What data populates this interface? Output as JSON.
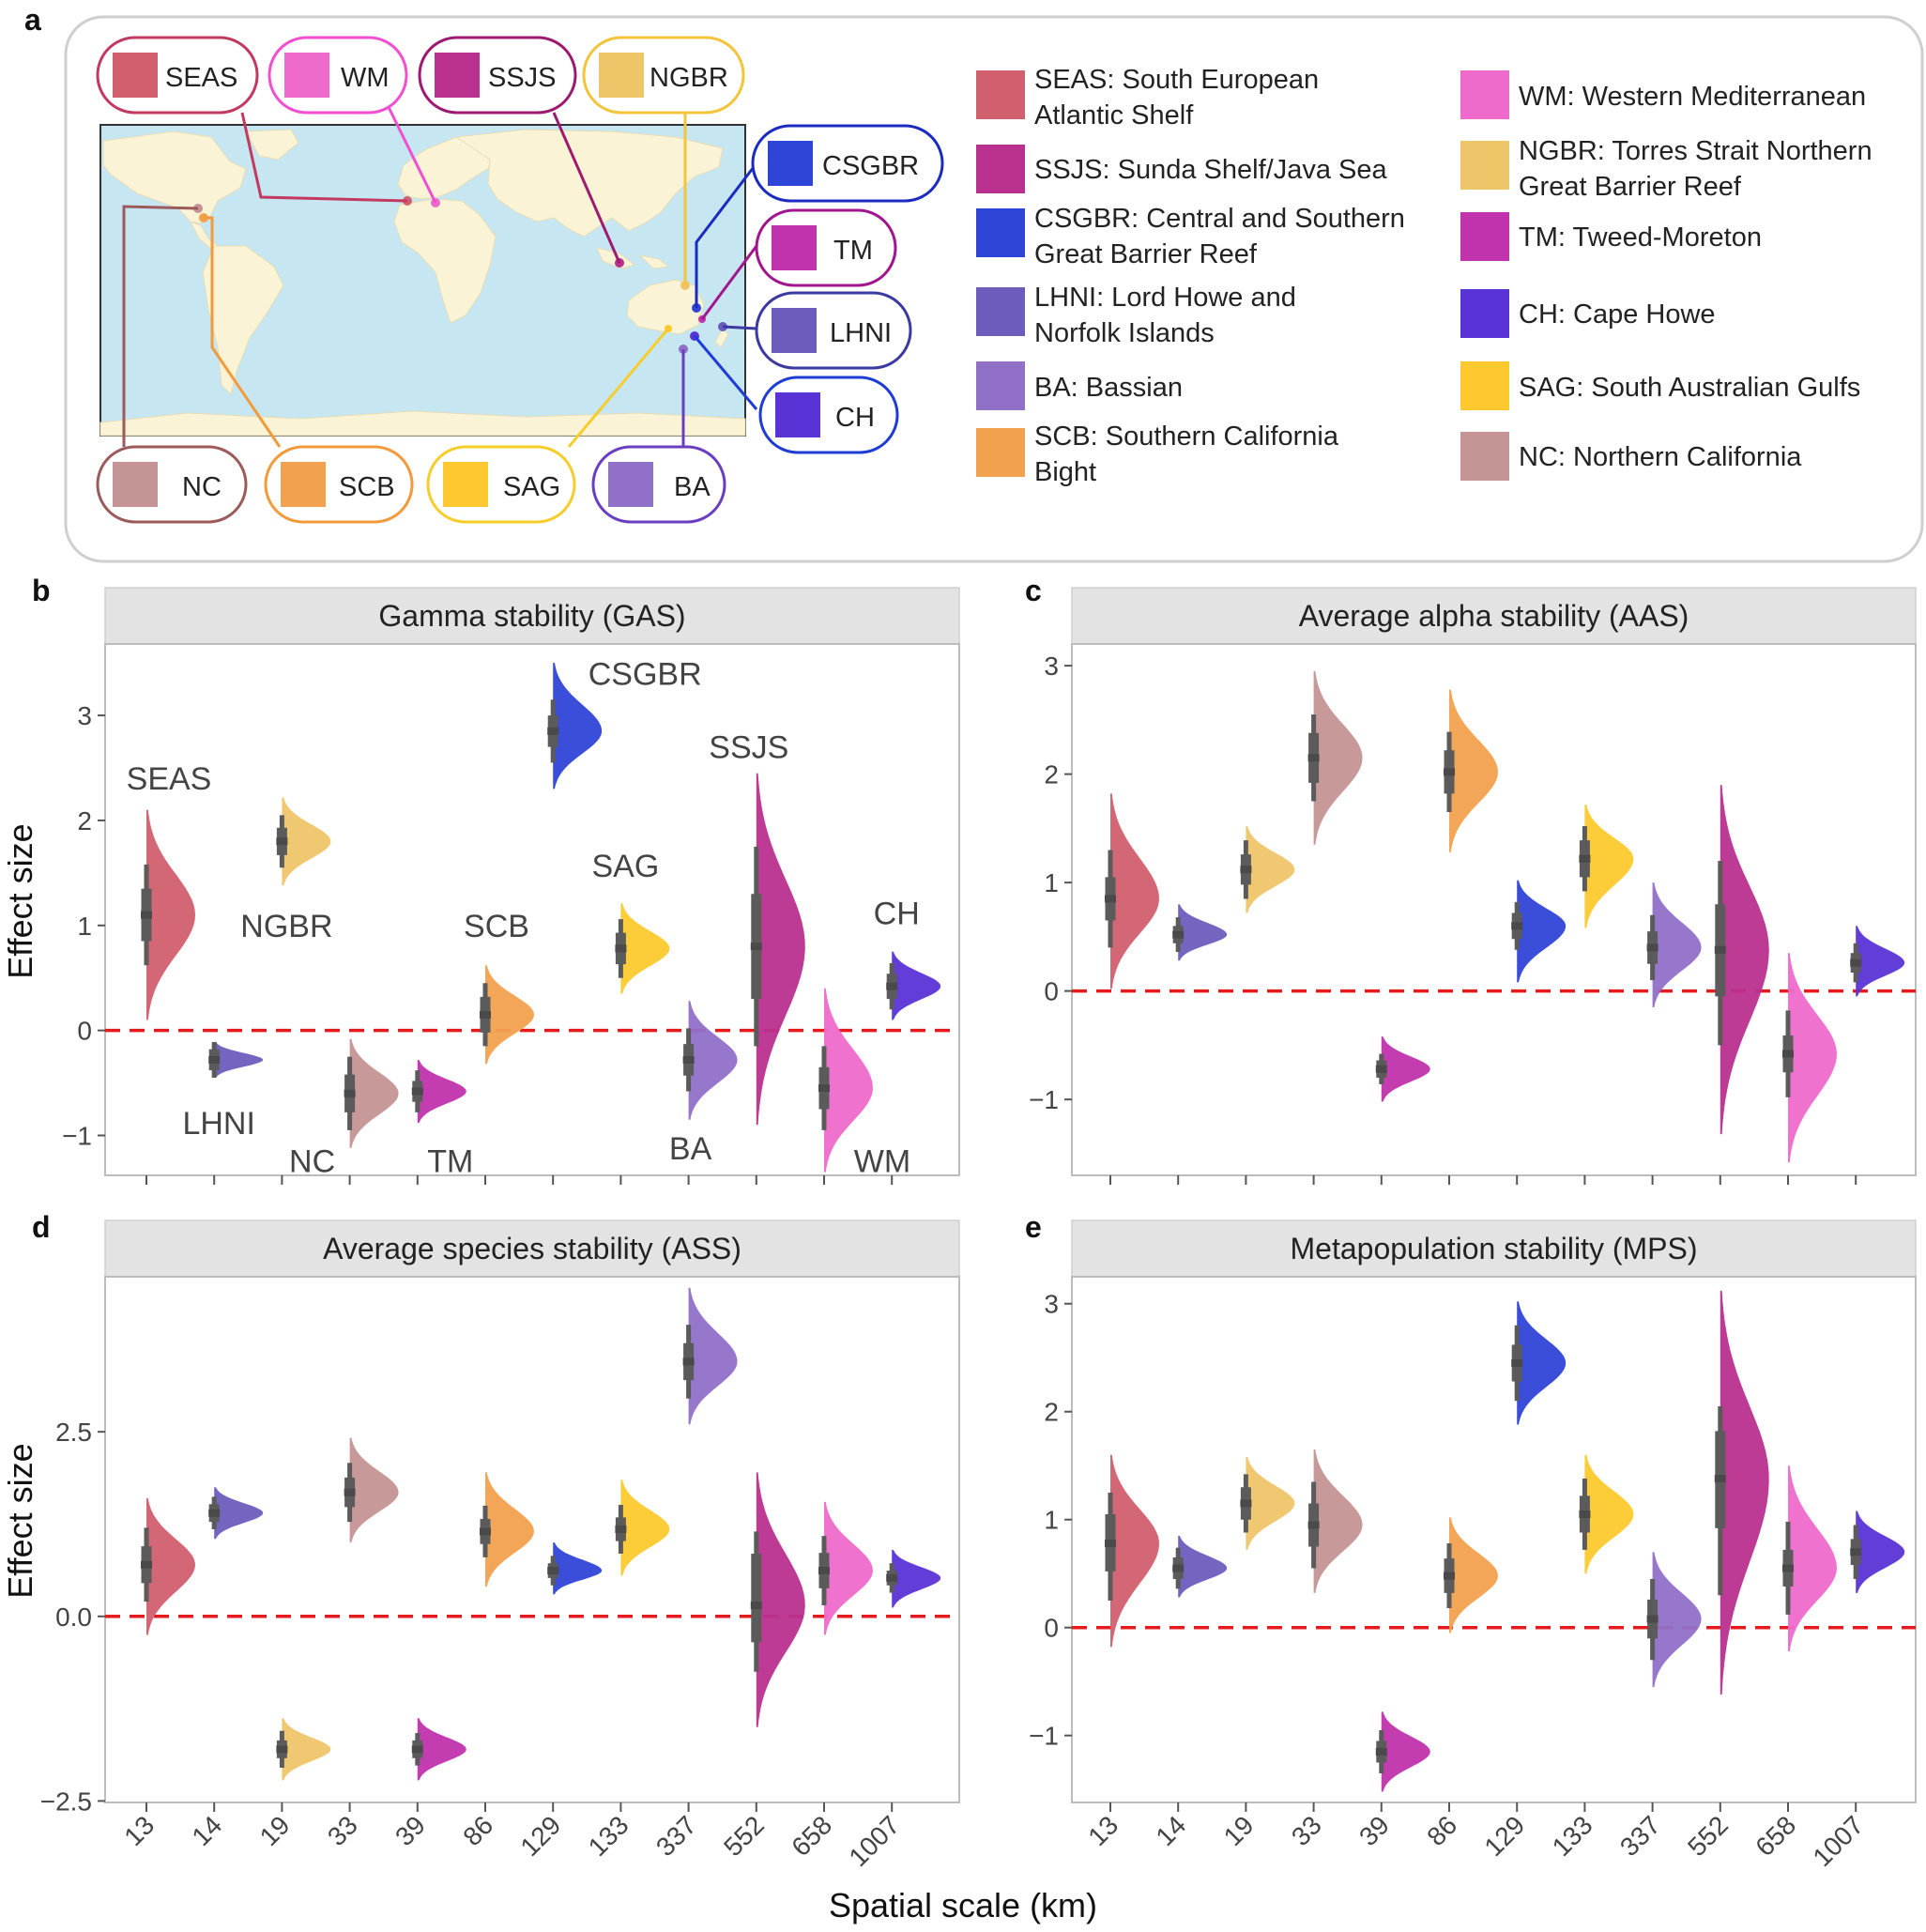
{
  "panel_labels": [
    "a",
    "b",
    "c",
    "d",
    "e"
  ],
  "regions": [
    {
      "code": "SEAS",
      "name": "South European Atlantic Shelf",
      "color": "#d15f6e"
    },
    {
      "code": "WM",
      "name": "Western Mediterranean",
      "color": "#ee6bcb"
    },
    {
      "code": "SSJS",
      "name": "Sunda Shelf/Java Sea",
      "color": "#b9308e"
    },
    {
      "code": "NGBR",
      "name": "Torres Strait Northern Great Barrier Reef",
      "color": "#efc56a"
    },
    {
      "code": "CSGBR",
      "name": "Central and Southern Great Barrier Reef",
      "color": "#2f45d8"
    },
    {
      "code": "TM",
      "name": "Tweed-Moreton",
      "color": "#c033ac"
    },
    {
      "code": "LHNI",
      "name": "Lord Howe and Norfolk Islands",
      "color": "#6e5cbd"
    },
    {
      "code": "CH",
      "name": "Cape Howe",
      "color": "#5a33d6"
    },
    {
      "code": "BA",
      "name": "Bassian",
      "color": "#9170c8"
    },
    {
      "code": "SCB",
      "name": "Southern California Bight",
      "color": "#f2a14f"
    },
    {
      "code": "SAG",
      "name": "South Australian Gulfs",
      "color": "#fdc92e"
    },
    {
      "code": "NC",
      "name": "Northern California",
      "color": "#c59494"
    }
  ],
  "map_pills": [
    {
      "code": "SEAS",
      "border": "#c23a60"
    },
    {
      "code": "WM",
      "border": "#ef4fd0"
    },
    {
      "code": "SSJS",
      "border": "#9e1a70"
    },
    {
      "code": "NGBR",
      "border": "#f3c43c"
    },
    {
      "code": "CSGBR",
      "border": "#1b2bbf"
    },
    {
      "code": "TM",
      "border": "#a1168e"
    },
    {
      "code": "LHNI",
      "border": "#3b3aa3"
    },
    {
      "code": "CH",
      "border": "#1f3cd4"
    },
    {
      "code": "NC",
      "border": "#9c5a5a"
    },
    {
      "code": "SCB",
      "border": "#f39a3c"
    },
    {
      "code": "SAG",
      "border": "#f7cd2c"
    },
    {
      "code": "BA",
      "border": "#6a3ec0"
    }
  ],
  "legend": {
    "left": [
      [
        "SEAS: South European",
        "Atlantic Shelf"
      ],
      [
        "SSJS: Sunda Shelf/Java Sea"
      ],
      [
        "CSGBR: Central and Southern",
        "Great Barrier Reef"
      ],
      [
        "LHNI: Lord Howe and",
        "Norfolk Islands"
      ],
      [
        "BA: Bassian"
      ],
      [
        "SCB: Southern California",
        "Bight"
      ]
    ],
    "right": [
      [
        "WM: Western Mediterranean"
      ],
      [
        "NGBR: Torres Strait Northern",
        "Great Barrier Reef"
      ],
      [
        "TM: Tweed-Moreton"
      ],
      [
        "CH: Cape Howe"
      ],
      [
        "SAG: South Australian Gulfs"
      ],
      [
        "NC: Northern California"
      ]
    ]
  },
  "axes": {
    "ylabel": "Effect size",
    "xlabel": "Spatial scale (km)"
  },
  "chart_data": [
    {
      "type": "half-eye",
      "panel": "b",
      "title": "Gamma stability (GAS)",
      "categories": [
        "13",
        "14",
        "19",
        "33",
        "39",
        "86",
        "129",
        "133",
        "337",
        "552",
        "658",
        "1007"
      ],
      "regions": [
        "SEAS",
        "LHNI",
        "NGBR",
        "NC",
        "TM",
        "SCB",
        "CSGBR",
        "SAG",
        "BA",
        "SSJS",
        "WM",
        "CH"
      ],
      "values": [
        1.1,
        -0.28,
        1.8,
        -0.6,
        -0.58,
        0.15,
        2.85,
        0.78,
        -0.28,
        0.8,
        -0.55,
        0.42
      ],
      "inner": [
        [
          0.85,
          1.35
        ],
        [
          -0.38,
          -0.18
        ],
        [
          1.67,
          1.93
        ],
        [
          -0.78,
          -0.42
        ],
        [
          -0.68,
          -0.48
        ],
        [
          -0.02,
          0.32
        ],
        [
          2.7,
          3.0
        ],
        [
          0.63,
          0.93
        ],
        [
          -0.43,
          -0.13
        ],
        [
          0.3,
          1.3
        ],
        [
          -0.75,
          -0.35
        ],
        [
          0.3,
          0.54
        ]
      ],
      "outer": [
        [
          0.62,
          1.58
        ],
        [
          -0.45,
          -0.11
        ],
        [
          1.55,
          2.05
        ],
        [
          -0.95,
          -0.25
        ],
        [
          -0.78,
          -0.38
        ],
        [
          -0.15,
          0.45
        ],
        [
          2.55,
          3.15
        ],
        [
          0.5,
          1.06
        ],
        [
          -0.58,
          0.02
        ],
        [
          -0.15,
          1.75
        ],
        [
          -0.95,
          -0.15
        ],
        [
          0.2,
          0.64
        ]
      ],
      "density": [
        [
          0.1,
          2.1
        ],
        [
          -0.45,
          -0.11
        ],
        [
          1.38,
          2.22
        ],
        [
          -1.12,
          -0.08
        ],
        [
          -0.88,
          -0.28
        ],
        [
          -0.32,
          0.62
        ],
        [
          2.3,
          3.5
        ],
        [
          0.35,
          1.21
        ],
        [
          -0.85,
          0.28
        ],
        [
          -0.9,
          2.45
        ],
        [
          -1.35,
          0.4
        ],
        [
          0.1,
          0.75
        ]
      ],
      "ylim": [
        -1.38,
        3.68
      ],
      "yticks": [
        -1,
        0,
        1,
        2,
        3
      ],
      "ytick_labels": [
        "−1",
        "0",
        "1",
        "2",
        "3"
      ],
      "reference_line": 0,
      "region_labels": [
        {
          "text": "SEAS",
          "x": "13",
          "y": 2.4
        },
        {
          "text": "NGBR",
          "x": "19",
          "y": 1.0
        },
        {
          "text": "LHNI",
          "x": "14",
          "y": -0.88
        },
        {
          "text": "NC",
          "x": "33",
          "y": -1.24
        },
        {
          "text": "TM",
          "x": "39",
          "y": -1.24
        },
        {
          "text": "SCB",
          "x": "86",
          "y": 1.0
        },
        {
          "text": "CSGBR",
          "x": "129",
          "y": 3.4
        },
        {
          "text": "SAG",
          "x": "133",
          "y": 1.57
        },
        {
          "text": "BA",
          "x": "337",
          "y": -1.12
        },
        {
          "text": "SSJS",
          "x": "552",
          "y": 2.7
        },
        {
          "text": "WM",
          "x": "658",
          "y": -1.24
        },
        {
          "text": "CH",
          "x": "1007",
          "y": 1.12
        }
      ]
    },
    {
      "type": "half-eye",
      "panel": "c",
      "title": "Average alpha stability (AAS)",
      "categories": [
        "13",
        "14",
        "19",
        "33",
        "39",
        "86",
        "129",
        "133",
        "337",
        "552",
        "658",
        "1007"
      ],
      "regions": [
        "SEAS",
        "LHNI",
        "NGBR",
        "NC",
        "TM",
        "SCB",
        "CSGBR",
        "SAG",
        "BA",
        "SSJS",
        "WM",
        "CH"
      ],
      "values": [
        0.85,
        0.52,
        1.12,
        2.15,
        -0.72,
        2.02,
        0.6,
        1.22,
        0.4,
        0.38,
        -0.58,
        0.26
      ],
      "inner": [
        [
          0.65,
          1.05
        ],
        [
          0.44,
          0.6
        ],
        [
          0.98,
          1.26
        ],
        [
          1.92,
          2.38
        ],
        [
          -0.8,
          -0.64
        ],
        [
          1.82,
          2.22
        ],
        [
          0.48,
          0.72
        ],
        [
          1.05,
          1.39
        ],
        [
          0.25,
          0.55
        ],
        [
          -0.05,
          0.8
        ],
        [
          -0.75,
          -0.41
        ],
        [
          0.17,
          0.35
        ]
      ],
      "outer": [
        [
          0.4,
          1.3
        ],
        [
          0.36,
          0.68
        ],
        [
          0.85,
          1.39
        ],
        [
          1.75,
          2.55
        ],
        [
          -0.86,
          -0.58
        ],
        [
          1.65,
          2.39
        ],
        [
          0.38,
          0.82
        ],
        [
          0.92,
          1.52
        ],
        [
          0.1,
          0.7
        ],
        [
          -0.5,
          1.2
        ],
        [
          -0.98,
          -0.18
        ],
        [
          0.08,
          0.44
        ]
      ],
      "density": [
        [
          0.02,
          1.82
        ],
        [
          0.28,
          0.8
        ],
        [
          0.72,
          1.52
        ],
        [
          1.35,
          2.95
        ],
        [
          -1.02,
          -0.42
        ],
        [
          1.28,
          2.78
        ],
        [
          0.08,
          1.02
        ],
        [
          0.58,
          1.72
        ],
        [
          -0.15,
          1.0
        ],
        [
          -1.32,
          1.9
        ],
        [
          -1.58,
          0.35
        ],
        [
          -0.05,
          0.6
        ]
      ],
      "ylim": [
        -1.7,
        3.2
      ],
      "yticks": [
        -1,
        0,
        1,
        2,
        3
      ],
      "ytick_labels": [
        "−1",
        "0",
        "1",
        "2",
        "3"
      ],
      "reference_line": 0
    },
    {
      "type": "half-eye",
      "panel": "d",
      "title": "Average species stability (ASS)",
      "categories": [
        "13",
        "14",
        "19",
        "33",
        "39",
        "86",
        "129",
        "133",
        "337",
        "552",
        "658",
        "1007"
      ],
      "regions": [
        "SEAS",
        "LHNI",
        "NGBR",
        "NC",
        "TM",
        "SCB",
        "CSGBR",
        "SAG",
        "BA",
        "SSJS",
        "WM",
        "CH"
      ],
      "values": [
        0.7,
        1.4,
        -1.8,
        1.68,
        -1.8,
        1.15,
        0.62,
        1.18,
        3.45,
        0.15,
        0.62,
        0.52
      ],
      "inner": [
        [
          0.45,
          0.95
        ],
        [
          1.28,
          1.52
        ],
        [
          -1.92,
          -1.68
        ],
        [
          1.48,
          1.88
        ],
        [
          -1.92,
          -1.68
        ],
        [
          0.98,
          1.32
        ],
        [
          0.52,
          0.72
        ],
        [
          1.02,
          1.34
        ],
        [
          3.2,
          3.7
        ],
        [
          -0.35,
          0.85
        ],
        [
          0.38,
          0.86
        ],
        [
          0.42,
          0.62
        ]
      ],
      "outer": [
        [
          0.2,
          1.2
        ],
        [
          1.18,
          1.62
        ],
        [
          -2.05,
          -1.55
        ],
        [
          1.28,
          2.08
        ],
        [
          -2.02,
          -1.58
        ],
        [
          0.8,
          1.5
        ],
        [
          0.42,
          0.82
        ],
        [
          0.85,
          1.51
        ],
        [
          2.95,
          3.95
        ],
        [
          -0.75,
          1.15
        ],
        [
          0.15,
          1.09
        ],
        [
          0.32,
          0.72
        ]
      ],
      "density": [
        [
          -0.25,
          1.6
        ],
        [
          1.05,
          1.75
        ],
        [
          -2.22,
          -1.38
        ],
        [
          1.0,
          2.42
        ],
        [
          -2.22,
          -1.38
        ],
        [
          0.4,
          1.95
        ],
        [
          0.3,
          1.0
        ],
        [
          0.55,
          1.85
        ],
        [
          2.6,
          4.45
        ],
        [
          -1.5,
          1.95
        ],
        [
          -0.25,
          1.55
        ],
        [
          0.12,
          0.9
        ]
      ],
      "ylim": [
        -2.52,
        4.6
      ],
      "yticks": [
        -2.5,
        0.0,
        2.5
      ],
      "ytick_labels": [
        "−2.5",
        "0.0",
        "2.5"
      ],
      "reference_line": 0
    },
    {
      "type": "half-eye",
      "panel": "e",
      "title": "Metapopulation stability (MPS)",
      "categories": [
        "13",
        "14",
        "19",
        "33",
        "39",
        "86",
        "129",
        "133",
        "337",
        "552",
        "658",
        "1007"
      ],
      "regions": [
        "SEAS",
        "LHNI",
        "NGBR",
        "NC",
        "TM",
        "SCB",
        "CSGBR",
        "SAG",
        "BA",
        "SSJS",
        "WM",
        "CH"
      ],
      "values": [
        0.78,
        0.55,
        1.15,
        0.95,
        -1.15,
        0.48,
        2.45,
        1.05,
        0.08,
        1.38,
        0.55,
        0.7
      ],
      "inner": [
        [
          0.52,
          1.05
        ],
        [
          0.45,
          0.65
        ],
        [
          1.0,
          1.3
        ],
        [
          0.75,
          1.15
        ],
        [
          -1.25,
          -1.05
        ],
        [
          0.32,
          0.64
        ],
        [
          2.28,
          2.62
        ],
        [
          0.88,
          1.22
        ],
        [
          -0.1,
          0.26
        ],
        [
          0.92,
          1.82
        ],
        [
          0.38,
          0.72
        ],
        [
          0.58,
          0.82
        ]
      ],
      "outer": [
        [
          0.25,
          1.25
        ],
        [
          0.36,
          0.74
        ],
        [
          0.88,
          1.42
        ],
        [
          0.55,
          1.35
        ],
        [
          -1.35,
          -0.95
        ],
        [
          0.18,
          0.78
        ],
        [
          2.1,
          2.8
        ],
        [
          0.72,
          1.38
        ],
        [
          -0.3,
          0.45
        ],
        [
          0.3,
          2.05
        ],
        [
          0.12,
          0.98
        ],
        [
          0.45,
          0.95
        ]
      ],
      "density": [
        [
          -0.18,
          1.6
        ],
        [
          0.28,
          0.85
        ],
        [
          0.72,
          1.58
        ],
        [
          0.32,
          1.65
        ],
        [
          -1.52,
          -0.78
        ],
        [
          -0.05,
          1.02
        ],
        [
          1.88,
          3.02
        ],
        [
          0.5,
          1.6
        ],
        [
          -0.55,
          0.7
        ],
        [
          -0.62,
          3.12
        ],
        [
          -0.22,
          1.5
        ],
        [
          0.32,
          1.08
        ]
      ],
      "ylim": [
        -1.62,
        3.25
      ],
      "yticks": [
        -1,
        0,
        1,
        2,
        3
      ],
      "ytick_labels": [
        "−1",
        "0",
        "1",
        "2",
        "3"
      ],
      "reference_line": 0
    }
  ]
}
